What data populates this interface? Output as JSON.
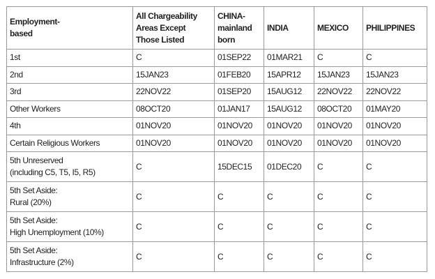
{
  "table": {
    "headers": [
      "Employment-\nbased",
      "All Chargeability\nAreas Except\nThose Listed",
      "CHINA-\nmainland\nborn",
      "INDIA",
      "MEXICO",
      "PHILIPPINES"
    ],
    "rows": [
      [
        "1st",
        "C",
        "01SEP22",
        "01MAR21",
        "C",
        "C"
      ],
      [
        "2nd",
        "15JAN23",
        "01FEB20",
        "15APR12",
        "15JAN23",
        "15JAN23"
      ],
      [
        "3rd",
        "22NOV22",
        "01SEP20",
        "15AUG12",
        "22NOV22",
        "22NOV22"
      ],
      [
        "Other Workers",
        "08OCT20",
        "01JAN17",
        "15AUG12",
        "08OCT20",
        "01MAY20"
      ],
      [
        "4th",
        "01NOV20",
        "01NOV20",
        "01NOV20",
        "01NOV20",
        "01NOV20"
      ],
      [
        "Certain Religious Workers",
        "01NOV20",
        "01NOV20",
        "01NOV20",
        "01NOV20",
        "01NOV20"
      ],
      [
        "5th Unreserved\n(including C5, T5, I5, R5)",
        "C",
        "15DEC15",
        "01DEC20",
        "C",
        "C"
      ],
      [
        "5th Set Aside:\nRural (20%)",
        "C",
        "C",
        "C",
        "C",
        "C"
      ],
      [
        "5th Set Aside:\nHigh Unemployment (10%)",
        "C",
        "C",
        "C",
        "C",
        "C"
      ],
      [
        "5th Set Aside:\nInfrastructure (2%)",
        "C",
        "C",
        "C",
        "C",
        "C"
      ]
    ]
  }
}
